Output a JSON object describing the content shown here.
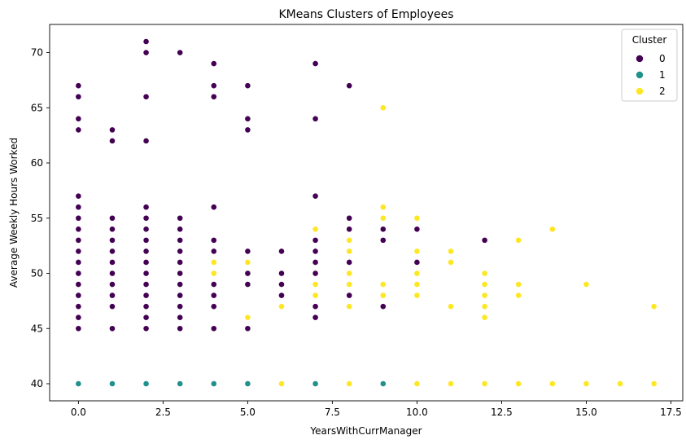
{
  "chart_data": {
    "type": "scatter",
    "title": "KMeans Clusters of Employees",
    "xlabel": "YearsWithCurrManager",
    "ylabel": "Average Weekly Hours Worked",
    "xlim": [
      -0.85,
      17.85
    ],
    "ylim": [
      38.45,
      72.55
    ],
    "xticks": [
      0.0,
      2.5,
      5.0,
      7.5,
      10.0,
      12.5,
      15.0,
      17.5
    ],
    "xtick_labels": [
      "0.0",
      "2.5",
      "5.0",
      "7.5",
      "10.0",
      "12.5",
      "15.0",
      "17.5"
    ],
    "yticks": [
      40,
      45,
      50,
      55,
      60,
      65,
      70
    ],
    "ytick_labels": [
      "40",
      "45",
      "50",
      "55",
      "60",
      "65",
      "70"
    ],
    "grid": false,
    "legend": {
      "title": "Cluster",
      "placement": "top-right"
    },
    "series": [
      {
        "name": "0",
        "color": "#440154",
        "points": [
          [
            0,
            45
          ],
          [
            0,
            46
          ],
          [
            0,
            47
          ],
          [
            0,
            48
          ],
          [
            0,
            49
          ],
          [
            0,
            50
          ],
          [
            0,
            51
          ],
          [
            0,
            52
          ],
          [
            0,
            53
          ],
          [
            0,
            54
          ],
          [
            0,
            55
          ],
          [
            0,
            56
          ],
          [
            0,
            57
          ],
          [
            0,
            63
          ],
          [
            0,
            64
          ],
          [
            0,
            66
          ],
          [
            0,
            67
          ],
          [
            1,
            45
          ],
          [
            1,
            47
          ],
          [
            1,
            48
          ],
          [
            1,
            49
          ],
          [
            1,
            50
          ],
          [
            1,
            51
          ],
          [
            1,
            52
          ],
          [
            1,
            53
          ],
          [
            1,
            54
          ],
          [
            1,
            55
          ],
          [
            1,
            62
          ],
          [
            1,
            63
          ],
          [
            2,
            45
          ],
          [
            2,
            46
          ],
          [
            2,
            47
          ],
          [
            2,
            48
          ],
          [
            2,
            49
          ],
          [
            2,
            50
          ],
          [
            2,
            51
          ],
          [
            2,
            52
          ],
          [
            2,
            53
          ],
          [
            2,
            54
          ],
          [
            2,
            55
          ],
          [
            2,
            56
          ],
          [
            2,
            62
          ],
          [
            2,
            66
          ],
          [
            2,
            70
          ],
          [
            2,
            71
          ],
          [
            3,
            45
          ],
          [
            3,
            46
          ],
          [
            3,
            47
          ],
          [
            3,
            48
          ],
          [
            3,
            49
          ],
          [
            3,
            50
          ],
          [
            3,
            51
          ],
          [
            3,
            52
          ],
          [
            3,
            53
          ],
          [
            3,
            54
          ],
          [
            3,
            55
          ],
          [
            3,
            70
          ],
          [
            4,
            45
          ],
          [
            4,
            47
          ],
          [
            4,
            48
          ],
          [
            4,
            49
          ],
          [
            4,
            52
          ],
          [
            4,
            53
          ],
          [
            4,
            56
          ],
          [
            4,
            66
          ],
          [
            4,
            67
          ],
          [
            4,
            69
          ],
          [
            5,
            45
          ],
          [
            5,
            49
          ],
          [
            5,
            50
          ],
          [
            5,
            52
          ],
          [
            5,
            63
          ],
          [
            5,
            64
          ],
          [
            5,
            67
          ],
          [
            6,
            48
          ],
          [
            6,
            49
          ],
          [
            6,
            50
          ],
          [
            6,
            52
          ],
          [
            7,
            46
          ],
          [
            7,
            47
          ],
          [
            7,
            50
          ],
          [
            7,
            51
          ],
          [
            7,
            52
          ],
          [
            7,
            53
          ],
          [
            7,
            57
          ],
          [
            7,
            64
          ],
          [
            7,
            69
          ],
          [
            8,
            48
          ],
          [
            8,
            51
          ],
          [
            8,
            54
          ],
          [
            8,
            55
          ],
          [
            8,
            67
          ],
          [
            9,
            47
          ],
          [
            9,
            53
          ],
          [
            9,
            54
          ],
          [
            10,
            51
          ],
          [
            10,
            54
          ],
          [
            12,
            53
          ]
        ]
      },
      {
        "name": "1",
        "color": "#21918c",
        "points": [
          [
            0,
            40
          ],
          [
            1,
            40
          ],
          [
            2,
            40
          ],
          [
            3,
            40
          ],
          [
            4,
            40
          ],
          [
            5,
            40
          ],
          [
            7,
            40
          ],
          [
            9,
            40
          ]
        ]
      },
      {
        "name": "2",
        "color": "#fde725",
        "points": [
          [
            4,
            50
          ],
          [
            4,
            51
          ],
          [
            5,
            46
          ],
          [
            5,
            51
          ],
          [
            6,
            40
          ],
          [
            6,
            47
          ],
          [
            7,
            48
          ],
          [
            7,
            49
          ],
          [
            7,
            54
          ],
          [
            8,
            40
          ],
          [
            8,
            47
          ],
          [
            8,
            49
          ],
          [
            8,
            50
          ],
          [
            8,
            52
          ],
          [
            8,
            53
          ],
          [
            9,
            48
          ],
          [
            9,
            49
          ],
          [
            9,
            55
          ],
          [
            9,
            56
          ],
          [
            9,
            65
          ],
          [
            10,
            40
          ],
          [
            10,
            48
          ],
          [
            10,
            49
          ],
          [
            10,
            50
          ],
          [
            10,
            52
          ],
          [
            10,
            55
          ],
          [
            11,
            40
          ],
          [
            11,
            47
          ],
          [
            11,
            51
          ],
          [
            11,
            52
          ],
          [
            12,
            40
          ],
          [
            12,
            46
          ],
          [
            12,
            47
          ],
          [
            12,
            48
          ],
          [
            12,
            49
          ],
          [
            12,
            50
          ],
          [
            13,
            40
          ],
          [
            13,
            48
          ],
          [
            13,
            49
          ],
          [
            13,
            53
          ],
          [
            14,
            40
          ],
          [
            14,
            54
          ],
          [
            15,
            40
          ],
          [
            15,
            49
          ],
          [
            16,
            40
          ],
          [
            17,
            40
          ],
          [
            17,
            47
          ]
        ]
      }
    ]
  }
}
